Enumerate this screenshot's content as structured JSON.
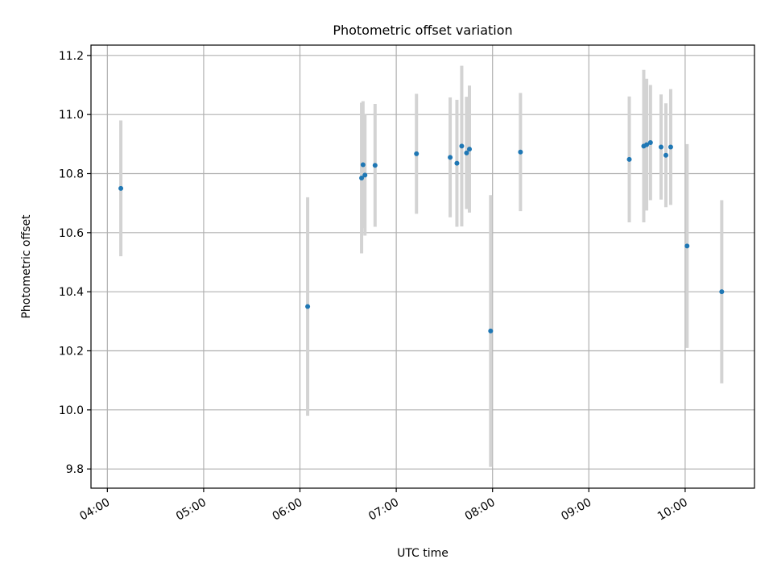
{
  "chart_data": {
    "type": "scatter",
    "title": "Photometric offset variation",
    "xlabel": "UTC time",
    "ylabel": "Photometric offset",
    "xlim": [
      3.83,
      10.72
    ],
    "ylim": [
      9.735,
      11.235
    ],
    "grid": true,
    "x_unit": "hours (UTC)",
    "x_tick_values": [
      4,
      5,
      6,
      7,
      8,
      9,
      10
    ],
    "x_tick_labels": [
      "04:00",
      "05:00",
      "06:00",
      "07:00",
      "08:00",
      "09:00",
      "10:00"
    ],
    "y_tick_values": [
      9.8,
      10.0,
      10.2,
      10.4,
      10.6,
      10.8,
      11.0,
      11.2
    ],
    "y_tick_labels": [
      "9.8",
      "10.0",
      "10.2",
      "10.4",
      "10.6",
      "10.8",
      "11.0",
      "11.2"
    ],
    "marker_color": "#1f77b4",
    "errorbar_color": "#d3d3d3",
    "points": [
      {
        "x": 4.14,
        "y": 10.75,
        "err": 0.23
      },
      {
        "x": 6.08,
        "y": 10.35,
        "err": 0.37
      },
      {
        "x": 6.64,
        "y": 10.785,
        "err": 0.255
      },
      {
        "x": 6.655,
        "y": 10.83,
        "err": 0.215
      },
      {
        "x": 6.675,
        "y": 10.795,
        "err": 0.205
      },
      {
        "x": 6.78,
        "y": 10.828,
        "err": 0.208
      },
      {
        "x": 7.21,
        "y": 10.867,
        "err": 0.203
      },
      {
        "x": 7.56,
        "y": 10.855,
        "err": 0.203
      },
      {
        "x": 7.63,
        "y": 10.835,
        "err": 0.215
      },
      {
        "x": 7.68,
        "y": 10.893,
        "err": 0.272
      },
      {
        "x": 7.73,
        "y": 10.87,
        "err": 0.19
      },
      {
        "x": 7.76,
        "y": 10.883,
        "err": 0.215
      },
      {
        "x": 7.98,
        "y": 10.267,
        "err": 0.46
      },
      {
        "x": 8.29,
        "y": 10.873,
        "err": 0.2
      },
      {
        "x": 9.42,
        "y": 10.848,
        "err": 0.213
      },
      {
        "x": 9.57,
        "y": 10.893,
        "err": 0.258
      },
      {
        "x": 9.6,
        "y": 10.898,
        "err": 0.223
      },
      {
        "x": 9.64,
        "y": 10.905,
        "err": 0.195
      },
      {
        "x": 9.75,
        "y": 10.89,
        "err": 0.178
      },
      {
        "x": 9.8,
        "y": 10.862,
        "err": 0.176
      },
      {
        "x": 9.85,
        "y": 10.89,
        "err": 0.196
      },
      {
        "x": 10.02,
        "y": 10.555,
        "err": 0.345
      },
      {
        "x": 10.38,
        "y": 10.4,
        "err": 0.31
      }
    ]
  }
}
